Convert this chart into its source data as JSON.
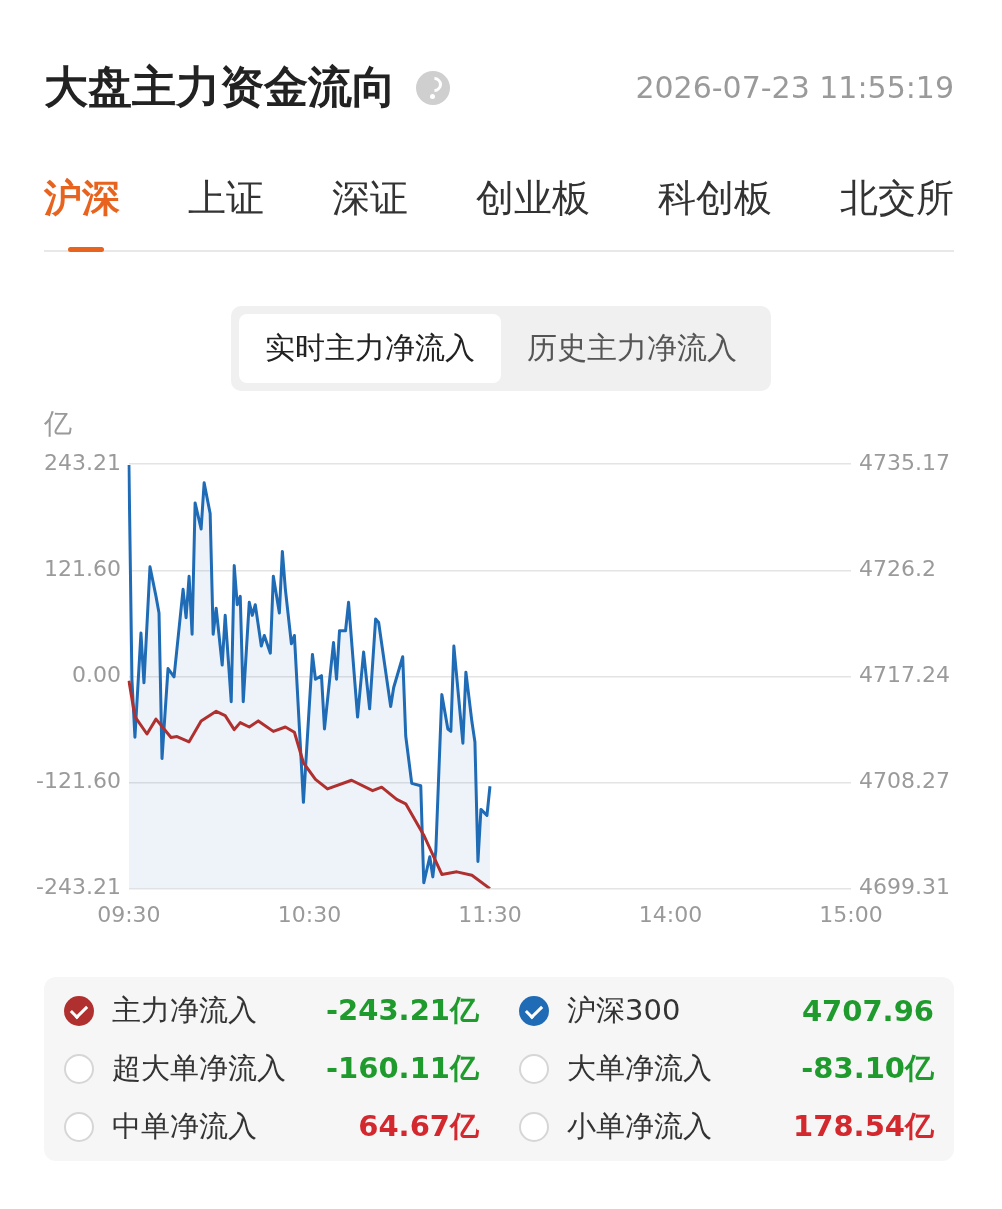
{
  "chart_data": {
    "type": "line",
    "title": "大盘主力资金流向",
    "subtitle": "2026-07-23 11:55:19",
    "ylabel": "亿",
    "annotations": [
      "沪深",
      "上证",
      "深证",
      "创业板",
      "科创板",
      "北交所",
      "实时主力净流入",
      "历史主力净流入",
      "-243.21亿",
      "4707.96",
      "超大单净流入",
      "-160.11亿",
      "大单净流入",
      "-83.10亿",
      "中单净流入",
      "64.67亿",
      "小单净流入",
      "178.54亿"
    ],
    "categories": [
      "09:30",
      null,
      null,
      null,
      null,
      null,
      null,
      null,
      null,
      null,
      null,
      null,
      null,
      null,
      null,
      null,
      null,
      null,
      null,
      null,
      null,
      null,
      null,
      null,
      null,
      null,
      null,
      null,
      null,
      null,
      null,
      null,
      null,
      null,
      null,
      null,
      null,
      null,
      null,
      null,
      null,
      null,
      null,
      null,
      null,
      null,
      null,
      null,
      null,
      null,
      null,
      null,
      null,
      null,
      null,
      null,
      null,
      null,
      null,
      null,
      "10:30",
      null,
      null,
      null,
      null,
      null,
      null,
      null,
      null,
      null,
      null,
      null,
      null,
      null,
      null,
      null,
      null,
      null,
      null,
      null,
      null,
      null,
      null,
      null,
      null,
      null,
      null,
      null,
      null,
      null,
      null,
      null,
      null,
      null,
      null,
      null,
      null,
      null,
      null,
      null,
      null,
      null,
      null,
      null,
      null,
      null,
      null,
      null,
      null,
      null,
      null,
      null,
      null,
      null,
      null,
      null,
      null,
      null,
      null,
      null,
      "11:30",
      null,
      null,
      null,
      null,
      null,
      null,
      null,
      null,
      null,
      null,
      null,
      null,
      null,
      null,
      null,
      null,
      null,
      null,
      null,
      null,
      null,
      null,
      null,
      null,
      null,
      null,
      null,
      null,
      null,
      null,
      null,
      null,
      null,
      null,
      null,
      null,
      null,
      null,
      null,
      null,
      null,
      null,
      null,
      null,
      null,
      null,
      null,
      null,
      null,
      null,
      null,
      null,
      null,
      null,
      null,
      null,
      null,
      null,
      null,
      "14:00",
      null,
      null,
      null,
      null,
      null,
      null,
      null,
      null,
      null,
      null,
      null,
      null,
      null,
      null,
      null,
      null,
      null,
      null,
      null,
      null,
      null,
      null,
      null,
      null,
      null,
      null,
      null,
      null,
      null,
      null,
      null,
      null,
      null,
      null,
      null,
      null,
      null,
      null,
      null,
      null,
      null,
      null,
      null,
      null,
      null,
      null,
      null,
      null,
      null,
      null,
      null,
      null,
      null,
      null,
      null,
      null,
      null,
      null,
      null,
      "15:00"
    ],
    "ylim": [
      -243.21,
      243.21
    ],
    "yticks": [
      {
        "value": -243.21,
        "label": "-243.21"
      },
      {
        "value": -121.6,
        "label": "-121.60"
      },
      {
        "value": 0,
        "label": "0.00"
      },
      {
        "value": 121.6,
        "label": "121.60"
      },
      {
        "value": 243.21,
        "label": "243.21"
      }
    ],
    "y2lim": [
      4699.31,
      4735.17
    ],
    "y2ticks": [
      4699.31,
      4708.27,
      4717.24,
      4726.2,
      4735.17
    ],
    "grid": "y",
    "legend": "bottom",
    "marker": "none",
    "line_style": "solid",
    "series": [
      {
        "name": "主力净流入",
        "color": "#b0302f",
        "values": [
          -5,
          null,
          -46,
          null,
          null,
          null,
          -66,
          null,
          null,
          -49,
          null,
          null,
          null,
          null,
          -70,
          null,
          -69,
          null,
          null,
          null,
          -75,
          null,
          null,
          null,
          -51,
          null,
          null,
          null,
          null,
          -40,
          null,
          null,
          -45,
          null,
          null,
          -61,
          null,
          -53,
          null,
          null,
          -58,
          null,
          null,
          -51,
          null,
          null,
          null,
          null,
          -63,
          null,
          null,
          null,
          -58,
          null,
          null,
          -64,
          null,
          null,
          -99,
          null,
          null,
          null,
          -118,
          null,
          null,
          null,
          -129,
          null,
          null,
          null,
          null,
          null,
          null,
          null,
          -119,
          null,
          null,
          null,
          null,
          null,
          null,
          -131,
          null,
          null,
          -127,
          null,
          null,
          null,
          null,
          -141,
          null,
          null,
          -146,
          null,
          null,
          null,
          null,
          null,
          -182,
          null,
          null,
          null,
          null,
          null,
          -227,
          null,
          null,
          null,
          null,
          -224,
          null,
          null,
          null,
          null,
          -228,
          null,
          null,
          null,
          null,
          null,
          -243.21,
          null,
          null,
          null,
          null,
          null,
          null,
          null,
          null,
          null,
          null,
          null,
          null,
          null,
          null,
          null,
          null,
          null,
          null,
          null,
          null,
          null,
          null,
          null,
          null,
          null,
          null,
          null,
          null,
          null,
          null,
          null,
          null,
          null,
          null,
          null,
          null,
          null,
          null,
          null,
          null,
          null,
          null,
          null,
          null,
          null,
          null,
          null,
          null,
          null,
          null,
          null,
          null,
          null,
          null,
          null,
          null,
          null,
          null,
          null,
          null,
          null,
          null,
          null,
          null,
          null,
          null,
          null,
          null,
          null,
          null,
          null,
          null,
          null,
          null,
          null,
          null,
          null,
          null,
          null,
          null,
          null,
          null,
          null,
          null,
          null,
          null,
          null,
          null,
          null,
          null,
          null,
          null,
          null,
          null,
          null,
          null,
          null,
          null,
          null,
          null,
          null,
          null,
          null,
          null,
          null,
          null,
          null,
          null,
          null,
          null,
          null,
          null,
          null,
          null,
          null,
          null,
          null,
          null,
          null,
          null
        ]
      },
      {
        "name": "沪深300",
        "color": "#1f6bb5",
        "type": "area",
        "axis": "y2",
        "values": [
          4735.1,
          4717.0,
          4712.1,
          null,
          4720.9,
          4716.7,
          null,
          4726.5,
          null,
          4724.0,
          4722.6,
          4710.3,
          null,
          4717.9,
          null,
          4717.2,
          null,
          null,
          4724.6,
          4722.2,
          4725.7,
          4720.8,
          4731.9,
          null,
          4729.7,
          4733.6,
          null,
          4731.0,
          4720.8,
          4723.0,
          null,
          4718.2,
          4722.4,
          null,
          4715.1,
          4726.6,
          4723.3,
          4724.0,
          4715.1,
          null,
          4723.5,
          4722.4,
          4723.3,
          null,
          4719.8,
          4720.7,
          null,
          4719.2,
          4725.7,
          null,
          4722.6,
          4727.8,
          4724.6,
          null,
          4720.0,
          4720.7,
          null,
          null,
          4706.6,
          null,
          null,
          4719.1,
          4717.0,
          null,
          4717.3,
          4712.8,
          null,
          null,
          4720.1,
          4717.0,
          4721.1,
          null,
          4721.1,
          4723.5,
          null,
          null,
          4713.8,
          null,
          4719.3,
          null,
          4714.5,
          null,
          4722.1,
          4721.8,
          null,
          null,
          null,
          4714.7,
          4716.3,
          null,
          null,
          4718.9,
          4712.2,
          null,
          4708.2,
          null,
          null,
          4708.0,
          4699.8,
          null,
          4702.0,
          4700.3,
          4702.5,
          null,
          4715.7,
          null,
          4712.8,
          4712.6,
          4719.8,
          null,
          null,
          4711.6,
          4717.6,
          null,
          4713.4,
          4711.7,
          4701.6,
          4706.0,
          null,
          4705.5,
          4707.96,
          null,
          null,
          null,
          null,
          null,
          null,
          null,
          null,
          null,
          null,
          null,
          null,
          null,
          null,
          null,
          null,
          null,
          null,
          null,
          null,
          null,
          null,
          null,
          null,
          null,
          null,
          null,
          null,
          null,
          null,
          null,
          null,
          null,
          null,
          null,
          null,
          null,
          null,
          null,
          null,
          null,
          null,
          null,
          null,
          null,
          null,
          null,
          null,
          null,
          null,
          null,
          null,
          null,
          null,
          null,
          null,
          null,
          null,
          null,
          null,
          null,
          null,
          null,
          null,
          null,
          null,
          null,
          null,
          null,
          null,
          null,
          null,
          null,
          null,
          null,
          null,
          null,
          null,
          null,
          null,
          null,
          null,
          null,
          null,
          null,
          null,
          null,
          null,
          null,
          null,
          null,
          null,
          null,
          null,
          null,
          null,
          null,
          null,
          null,
          null,
          null,
          null,
          null,
          null,
          null,
          null,
          null,
          null,
          null,
          null,
          null,
          null,
          null,
          null,
          null,
          null,
          null,
          null,
          null,
          null
        ]
      }
    ]
  }
}
